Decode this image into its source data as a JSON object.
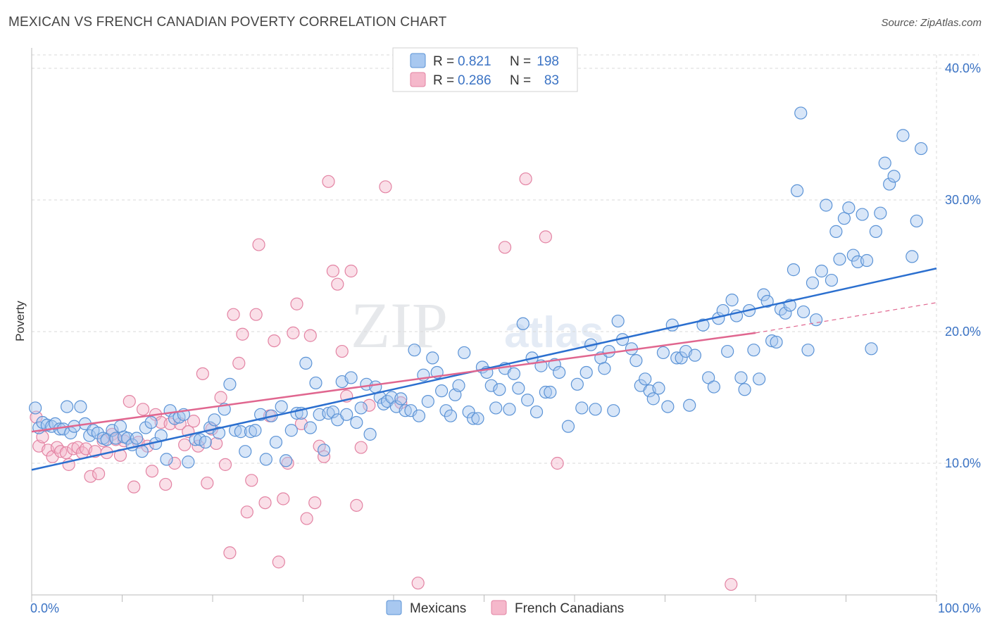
{
  "header": {
    "title": "MEXICAN VS FRENCH CANADIAN POVERTY CORRELATION CHART",
    "source": "Source: ZipAtlas.com"
  },
  "watermark": {
    "zip": "ZIP",
    "atlas": "atlas"
  },
  "legend_box": {
    "rows": [
      {
        "r_label": "R =",
        "r_value": "0.821",
        "n_label": "N =",
        "n_value": "198"
      },
      {
        "r_label": "R =",
        "r_value": "0.286",
        "n_label": "N =",
        "n_value": "83"
      }
    ]
  },
  "bottom_legend": [
    "Mexicans",
    "French Canadians"
  ],
  "colors": {
    "blue_fill": "#a8c8f0",
    "blue_stroke": "#5b93d6",
    "blue_line": "#2b6fcf",
    "pink_fill": "#f5b8cb",
    "pink_stroke": "#e383a3",
    "pink_line": "#e0668f",
    "axis_label": "#3b73c4",
    "grid": "#d9d9d9"
  },
  "chart_data": {
    "type": "scatter",
    "ylabel": "Poverty",
    "xlabel": "",
    "xlim": [
      0,
      100
    ],
    "ylim": [
      0,
      40
    ],
    "x_tick_labels": [
      "0.0%",
      "100.0%"
    ],
    "y_ticks": [
      10,
      20,
      30,
      40
    ],
    "y_tick_labels": [
      "10.0%",
      "20.0%",
      "30.0%",
      "40.0%"
    ],
    "grid": true,
    "series": [
      {
        "name": "Mexicans",
        "r": 0.821,
        "n": 198,
        "trend": {
          "x": [
            0,
            100
          ],
          "y": [
            9.5,
            24.8
          ]
        },
        "points": [
          [
            0.4,
            14.2
          ],
          [
            0.8,
            12.7
          ],
          [
            1.2,
            13.1
          ],
          [
            1.7,
            12.9
          ],
          [
            2.2,
            12.8
          ],
          [
            2.6,
            13.0
          ],
          [
            3.1,
            12.6
          ],
          [
            3.5,
            12.6
          ],
          [
            3.9,
            14.3
          ],
          [
            4.3,
            12.3
          ],
          [
            4.7,
            12.8
          ],
          [
            5.4,
            14.3
          ],
          [
            5.9,
            13.0
          ],
          [
            6.4,
            12.1
          ],
          [
            6.8,
            12.5
          ],
          [
            7.3,
            12.3
          ],
          [
            7.9,
            11.9
          ],
          [
            8.3,
            11.8
          ],
          [
            8.9,
            12.5
          ],
          [
            9.3,
            11.9
          ],
          [
            9.8,
            12.8
          ],
          [
            10.2,
            12.0
          ],
          [
            10.6,
            11.9
          ],
          [
            11.1,
            11.4
          ],
          [
            11.6,
            11.9
          ],
          [
            12.2,
            10.9
          ],
          [
            12.6,
            12.7
          ],
          [
            13.2,
            13.1
          ],
          [
            13.7,
            11.5
          ],
          [
            14.3,
            12.1
          ],
          [
            14.9,
            10.3
          ],
          [
            15.3,
            14.0
          ],
          [
            15.8,
            13.4
          ],
          [
            16.3,
            13.5
          ],
          [
            16.8,
            13.7
          ],
          [
            17.3,
            10.1
          ],
          [
            18.1,
            11.8
          ],
          [
            18.6,
            11.8
          ],
          [
            19.2,
            11.6
          ],
          [
            19.7,
            12.7
          ],
          [
            20.2,
            13.3
          ],
          [
            20.7,
            12.3
          ],
          [
            21.3,
            14.1
          ],
          [
            21.9,
            16.0
          ],
          [
            22.5,
            12.5
          ],
          [
            23.1,
            12.4
          ],
          [
            23.6,
            10.9
          ],
          [
            24.2,
            12.4
          ],
          [
            24.7,
            12.5
          ],
          [
            25.3,
            13.7
          ],
          [
            25.9,
            10.3
          ],
          [
            26.5,
            13.6
          ],
          [
            27.0,
            11.6
          ],
          [
            27.6,
            14.3
          ],
          [
            28.1,
            10.2
          ],
          [
            28.7,
            12.5
          ],
          [
            29.3,
            13.8
          ],
          [
            29.8,
            13.8
          ],
          [
            30.3,
            17.6
          ],
          [
            30.8,
            12.7
          ],
          [
            31.4,
            16.1
          ],
          [
            31.8,
            13.7
          ],
          [
            32.3,
            11.0
          ],
          [
            32.8,
            13.8
          ],
          [
            33.3,
            13.9
          ],
          [
            33.8,
            13.3
          ],
          [
            34.3,
            16.2
          ],
          [
            34.8,
            13.7
          ],
          [
            35.3,
            16.5
          ],
          [
            35.9,
            13.1
          ],
          [
            36.4,
            14.2
          ],
          [
            37.0,
            16.0
          ],
          [
            37.4,
            12.2
          ],
          [
            38.0,
            15.8
          ],
          [
            38.5,
            15.0
          ],
          [
            38.9,
            14.5
          ],
          [
            39.3,
            14.7
          ],
          [
            39.8,
            15.0
          ],
          [
            40.3,
            14.3
          ],
          [
            40.8,
            14.9
          ],
          [
            41.3,
            14.0
          ],
          [
            41.9,
            14.0
          ],
          [
            42.3,
            18.6
          ],
          [
            42.8,
            13.6
          ],
          [
            43.3,
            16.7
          ],
          [
            43.8,
            14.7
          ],
          [
            44.3,
            18.0
          ],
          [
            44.8,
            16.9
          ],
          [
            45.3,
            15.5
          ],
          [
            45.8,
            14.0
          ],
          [
            46.3,
            13.6
          ],
          [
            46.8,
            15.2
          ],
          [
            47.2,
            15.9
          ],
          [
            47.8,
            18.4
          ],
          [
            48.3,
            13.9
          ],
          [
            48.8,
            13.4
          ],
          [
            49.3,
            13.4
          ],
          [
            49.8,
            17.3
          ],
          [
            50.3,
            16.9
          ],
          [
            50.8,
            15.9
          ],
          [
            51.3,
            14.2
          ],
          [
            51.7,
            15.6
          ],
          [
            52.3,
            17.2
          ],
          [
            52.8,
            14.1
          ],
          [
            53.3,
            16.8
          ],
          [
            53.8,
            15.7
          ],
          [
            54.3,
            20.6
          ],
          [
            54.8,
            14.8
          ],
          [
            55.3,
            18.0
          ],
          [
            55.8,
            13.9
          ],
          [
            56.3,
            17.4
          ],
          [
            56.8,
            15.4
          ],
          [
            57.3,
            15.4
          ],
          [
            57.8,
            17.5
          ],
          [
            58.3,
            16.9
          ],
          [
            59.3,
            12.8
          ],
          [
            60.3,
            16.0
          ],
          [
            60.8,
            14.2
          ],
          [
            61.3,
            16.9
          ],
          [
            61.8,
            19.0
          ],
          [
            62.3,
            14.1
          ],
          [
            62.9,
            18.0
          ],
          [
            63.3,
            17.2
          ],
          [
            63.8,
            18.5
          ],
          [
            64.3,
            14.0
          ],
          [
            64.8,
            20.8
          ],
          [
            65.3,
            19.4
          ],
          [
            66.3,
            18.7
          ],
          [
            66.8,
            17.8
          ],
          [
            67.3,
            15.9
          ],
          [
            67.8,
            16.4
          ],
          [
            68.3,
            15.5
          ],
          [
            68.7,
            14.9
          ],
          [
            69.3,
            15.7
          ],
          [
            69.8,
            18.4
          ],
          [
            70.3,
            14.3
          ],
          [
            70.8,
            20.5
          ],
          [
            71.3,
            18.0
          ],
          [
            71.8,
            18.0
          ],
          [
            72.3,
            18.5
          ],
          [
            72.7,
            14.4
          ],
          [
            73.3,
            18.2
          ],
          [
            74.2,
            20.5
          ],
          [
            74.8,
            16.5
          ],
          [
            75.4,
            15.8
          ],
          [
            75.9,
            21.0
          ],
          [
            76.4,
            21.6
          ],
          [
            76.9,
            18.5
          ],
          [
            77.4,
            22.4
          ],
          [
            77.9,
            21.2
          ],
          [
            78.4,
            16.5
          ],
          [
            78.8,
            15.6
          ],
          [
            79.3,
            21.6
          ],
          [
            79.8,
            18.6
          ],
          [
            80.4,
            16.4
          ],
          [
            80.9,
            22.8
          ],
          [
            81.3,
            22.3
          ],
          [
            81.8,
            19.3
          ],
          [
            82.3,
            19.2
          ],
          [
            82.8,
            21.7
          ],
          [
            83.3,
            21.4
          ],
          [
            83.8,
            22.0
          ],
          [
            84.2,
            24.7
          ],
          [
            84.6,
            30.7
          ],
          [
            85.3,
            21.5
          ],
          [
            85.8,
            18.6
          ],
          [
            86.3,
            23.7
          ],
          [
            86.7,
            20.9
          ],
          [
            87.3,
            24.6
          ],
          [
            87.8,
            29.6
          ],
          [
            88.4,
            23.9
          ],
          [
            88.9,
            27.6
          ],
          [
            89.3,
            25.5
          ],
          [
            89.8,
            28.6
          ],
          [
            90.3,
            29.4
          ],
          [
            90.8,
            25.8
          ],
          [
            91.3,
            25.3
          ],
          [
            91.8,
            28.9
          ],
          [
            92.3,
            25.4
          ],
          [
            92.8,
            18.7
          ],
          [
            93.3,
            27.6
          ],
          [
            93.8,
            29.0
          ],
          [
            94.3,
            32.8
          ],
          [
            94.8,
            31.2
          ],
          [
            95.3,
            31.8
          ],
          [
            96.3,
            34.9
          ],
          [
            97.3,
            25.7
          ],
          [
            97.8,
            28.4
          ],
          [
            98.3,
            33.9
          ],
          [
            85.0,
            36.6
          ]
        ]
      },
      {
        "name": "French Canadians",
        "r": 0.286,
        "n": 83,
        "trend": {
          "x": [
            0,
            80
          ],
          "y": [
            12.4,
            19.9
          ]
        },
        "trend_extension": {
          "x": [
            80,
            100
          ],
          "y": [
            19.9,
            22.2
          ]
        },
        "points": [
          [
            0.5,
            13.5
          ],
          [
            0.8,
            11.3
          ],
          [
            1.2,
            12.0
          ],
          [
            1.8,
            11.0
          ],
          [
            2.3,
            10.5
          ],
          [
            2.8,
            11.2
          ],
          [
            3.2,
            10.9
          ],
          [
            3.8,
            10.8
          ],
          [
            4.1,
            9.9
          ],
          [
            4.6,
            11.1
          ],
          [
            5.1,
            11.2
          ],
          [
            5.6,
            10.8
          ],
          [
            6.0,
            11.1
          ],
          [
            6.5,
            9.0
          ],
          [
            7.0,
            10.9
          ],
          [
            7.4,
            9.2
          ],
          [
            7.9,
            11.7
          ],
          [
            8.3,
            10.8
          ],
          [
            8.9,
            12.2
          ],
          [
            9.3,
            11.8
          ],
          [
            9.8,
            10.6
          ],
          [
            10.2,
            11.7
          ],
          [
            10.8,
            14.7
          ],
          [
            11.3,
            8.2
          ],
          [
            11.8,
            11.6
          ],
          [
            12.3,
            14.1
          ],
          [
            12.8,
            11.3
          ],
          [
            13.3,
            9.4
          ],
          [
            13.7,
            13.7
          ],
          [
            14.3,
            13.1
          ],
          [
            14.8,
            8.4
          ],
          [
            15.3,
            13.0
          ],
          [
            15.8,
            10.0
          ],
          [
            16.4,
            13.0
          ],
          [
            16.9,
            11.4
          ],
          [
            17.3,
            12.4
          ],
          [
            17.9,
            13.2
          ],
          [
            18.4,
            11.3
          ],
          [
            18.9,
            16.8
          ],
          [
            19.4,
            8.5
          ],
          [
            19.9,
            12.6
          ],
          [
            20.4,
            11.5
          ],
          [
            20.9,
            15.0
          ],
          [
            21.4,
            9.9
          ],
          [
            21.9,
            3.2
          ],
          [
            22.3,
            21.3
          ],
          [
            22.9,
            17.6
          ],
          [
            23.3,
            19.8
          ],
          [
            23.8,
            6.3
          ],
          [
            24.3,
            8.7
          ],
          [
            24.8,
            21.3
          ],
          [
            25.1,
            26.6
          ],
          [
            25.8,
            7.0
          ],
          [
            26.3,
            13.6
          ],
          [
            26.8,
            19.3
          ],
          [
            27.3,
            2.5
          ],
          [
            27.8,
            7.3
          ],
          [
            28.3,
            10.0
          ],
          [
            28.9,
            19.9
          ],
          [
            29.3,
            22.1
          ],
          [
            29.8,
            13.0
          ],
          [
            30.4,
            5.8
          ],
          [
            30.8,
            19.7
          ],
          [
            31.3,
            7.0
          ],
          [
            31.8,
            11.3
          ],
          [
            32.3,
            10.5
          ],
          [
            32.8,
            31.4
          ],
          [
            33.3,
            24.6
          ],
          [
            33.8,
            23.6
          ],
          [
            34.3,
            18.5
          ],
          [
            34.8,
            15.1
          ],
          [
            35.3,
            24.6
          ],
          [
            35.9,
            6.8
          ],
          [
            36.4,
            11.2
          ],
          [
            37.3,
            14.4
          ],
          [
            39.1,
            31.0
          ],
          [
            40.8,
            14.6
          ],
          [
            42.7,
            0.9
          ],
          [
            52.3,
            26.4
          ],
          [
            54.6,
            31.6
          ],
          [
            56.8,
            27.2
          ],
          [
            58.1,
            10.0
          ],
          [
            77.3,
            0.8
          ]
        ]
      }
    ]
  }
}
